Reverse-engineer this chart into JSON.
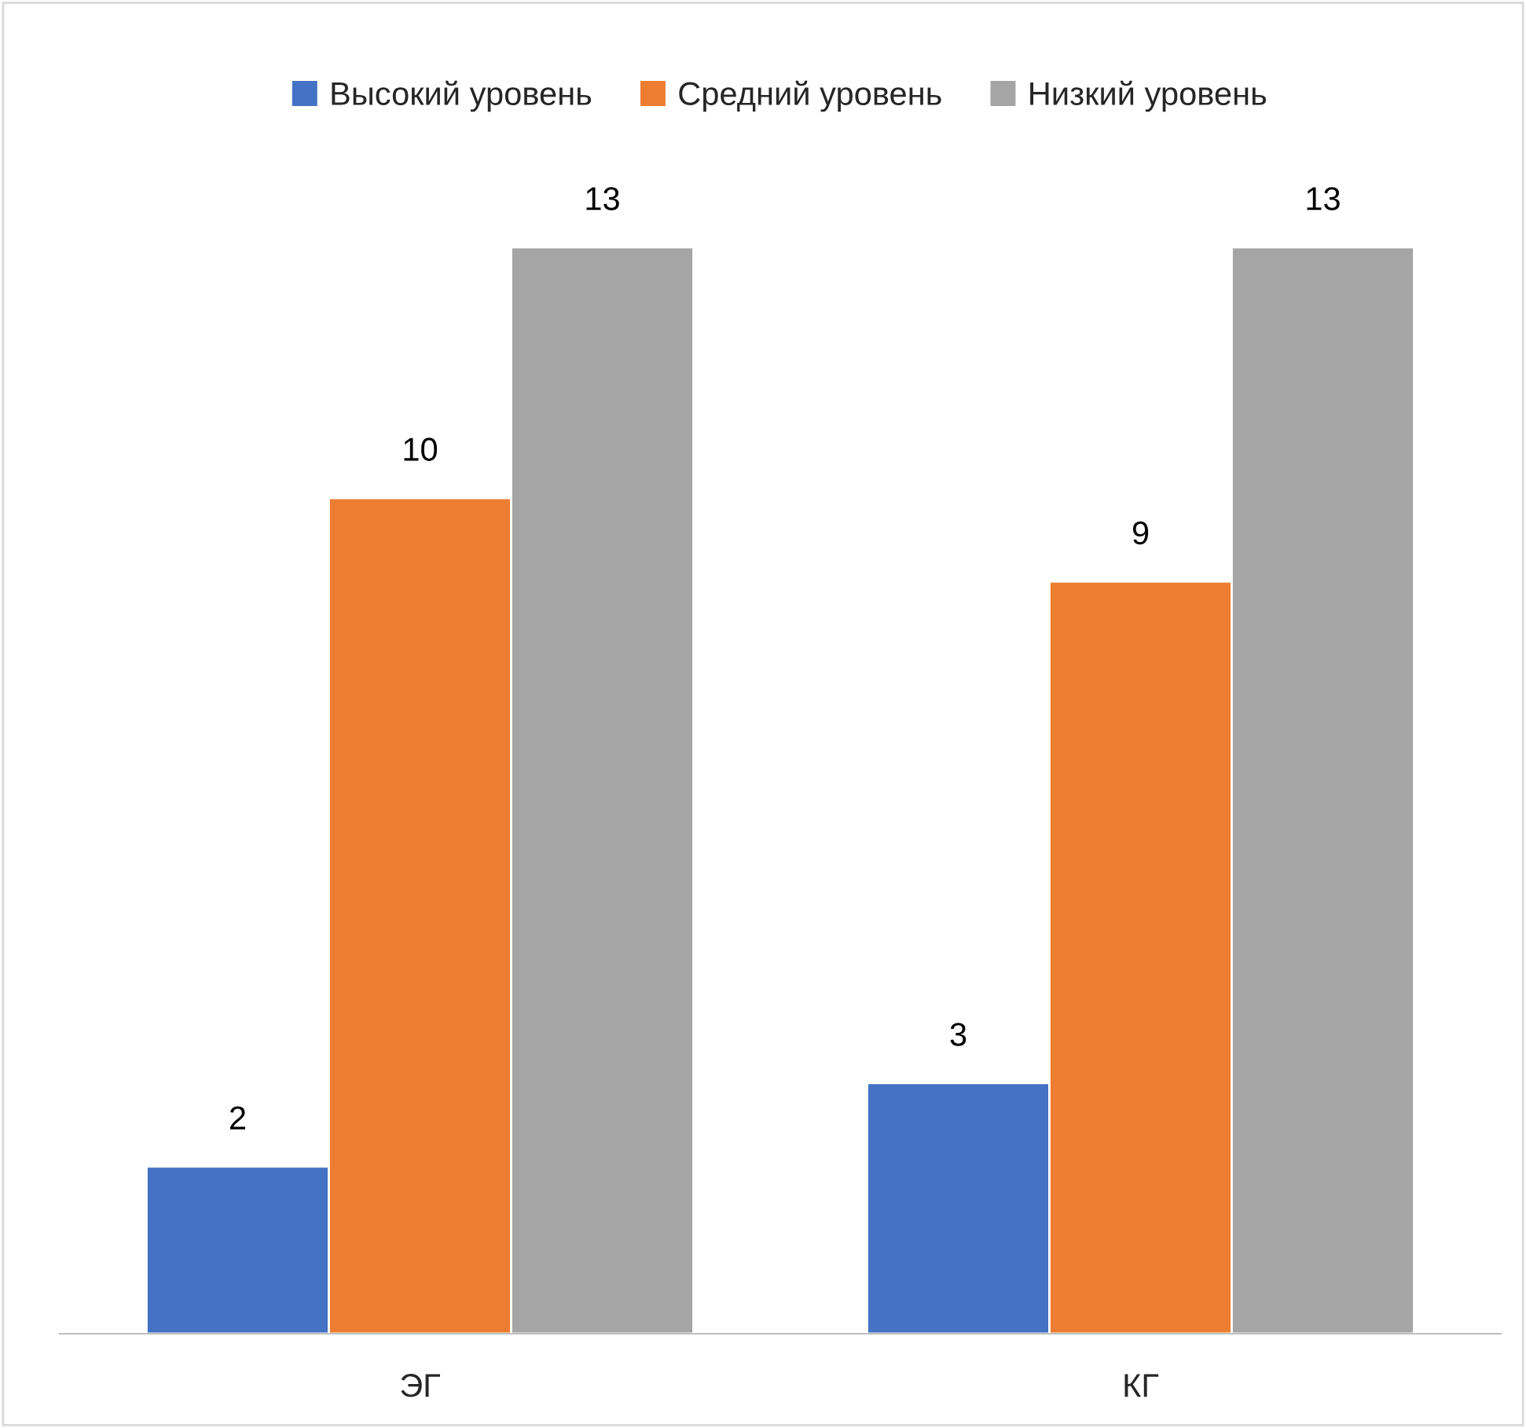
{
  "chart_data": {
    "type": "bar",
    "categories": [
      "ЭГ",
      "КГ"
    ],
    "series": [
      {
        "name": "Высокий уровень",
        "color": "#4472c4",
        "values": [
          2,
          3
        ]
      },
      {
        "name": "Средний уровень",
        "color": "#ed7d31",
        "values": [
          10,
          9
        ]
      },
      {
        "name": "Низкий уровень",
        "color": "#a5a5a5",
        "values": [
          13,
          13
        ]
      }
    ],
    "data_labels": true,
    "legend": "top",
    "grid": false
  }
}
